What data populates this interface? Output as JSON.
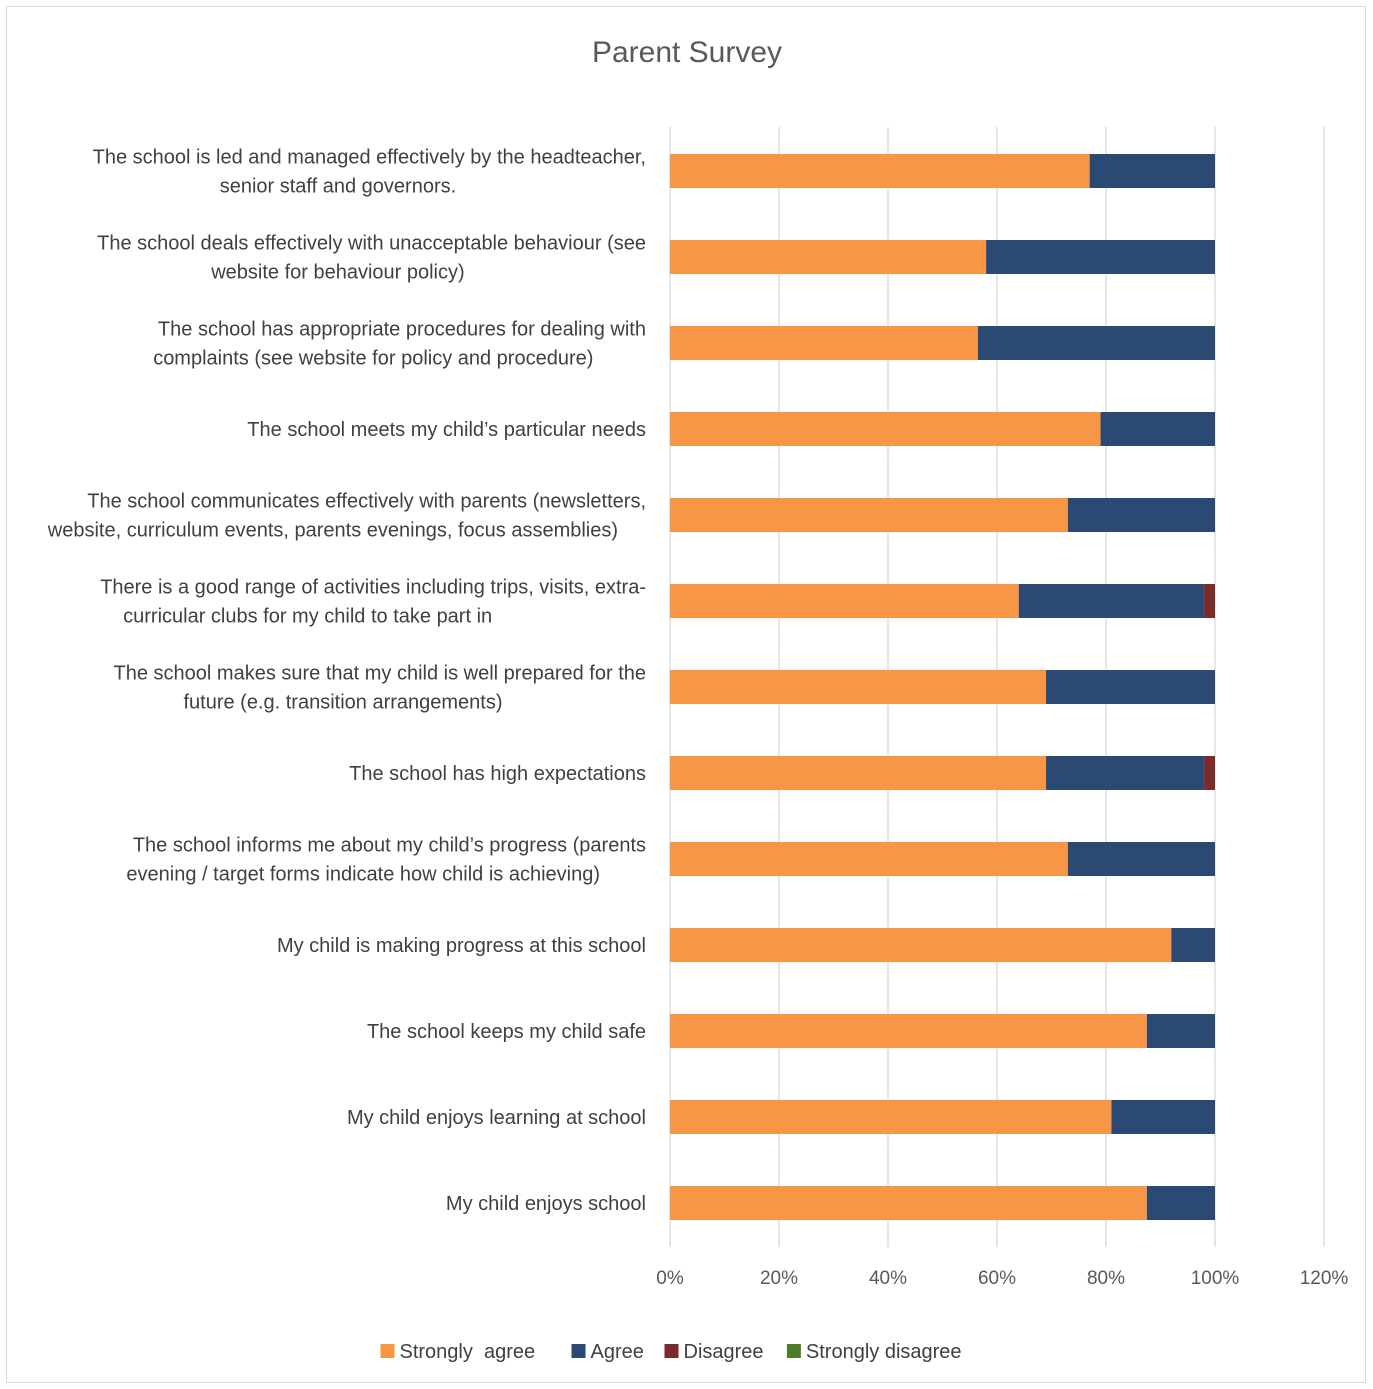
{
  "chart_data": {
    "type": "bar",
    "orientation": "horizontal",
    "stacked": true,
    "title": "Parent Survey",
    "categories": [
      [
        "The school is led and managed effectively by the headteacher,",
        "senior staff and governors."
      ],
      [
        "The school deals effectively with unacceptable behaviour (see",
        "website for behaviour policy)"
      ],
      [
        "The school has appropriate procedures for dealing with",
        "complaints (see website for policy and procedure)"
      ],
      [
        "The school meets my child’s particular needs"
      ],
      [
        "The school communicates effectively with parents (newsletters,",
        "website, curriculum events, parents evenings, focus assemblies)"
      ],
      [
        "There is a good range of activities including trips, visits, extra-",
        "curricular clubs for my child to take part in"
      ],
      [
        "The school makes sure that my child is well prepared for the",
        "future (e.g. transition arrangements)"
      ],
      [
        "The school has high expectations"
      ],
      [
        "The school informs me about my child’s progress (parents",
        "evening / target forms indicate how child is achieving)"
      ],
      [
        "My child is making progress at this school"
      ],
      [
        "The school keeps my child safe"
      ],
      [
        "My child enjoys learning at school"
      ],
      [
        "My child enjoys school"
      ]
    ],
    "series": [
      {
        "name": "Strongly  agree",
        "color": "#f79646",
        "values": [
          77,
          58,
          56.5,
          79,
          73,
          64,
          69,
          69,
          73,
          92,
          87.5,
          81,
          87.5
        ]
      },
      {
        "name": "Agree",
        "color": "#2a4a73",
        "values": [
          23,
          42,
          43.5,
          21,
          27,
          34,
          31,
          29,
          27,
          8,
          12.5,
          19,
          12.5
        ]
      },
      {
        "name": "Disagree",
        "color": "#7b2a2a",
        "values": [
          0,
          0,
          0,
          0,
          0,
          2,
          0,
          2,
          0,
          0,
          0,
          0,
          0
        ]
      },
      {
        "name": "Strongly disagree",
        "color": "#4f7a28",
        "values": [
          0,
          0,
          0,
          0,
          0,
          0,
          0,
          0,
          0,
          0,
          0,
          0,
          0
        ]
      }
    ],
    "xlim": [
      0,
      120
    ],
    "xticks": [
      "0%",
      "20%",
      "40%",
      "60%",
      "80%",
      "100%",
      "120%"
    ],
    "grid": true,
    "legend_position": "bottom",
    "gridline_color": "#d9d9d9"
  }
}
